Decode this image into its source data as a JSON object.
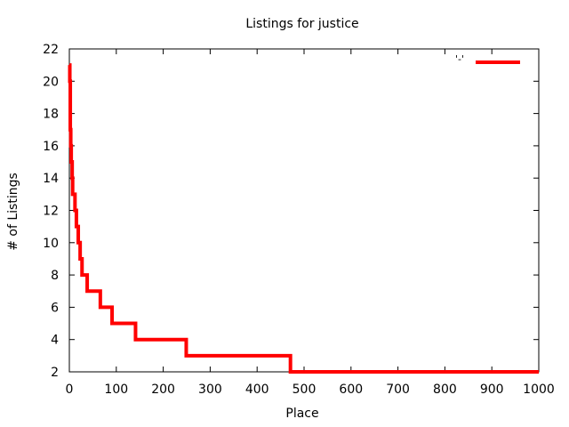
{
  "chart_data": {
    "type": "line",
    "title": "Listings for justice",
    "xlabel": "Place",
    "ylabel": "# of Listings",
    "xlim": [
      0,
      1000
    ],
    "ylim": [
      2,
      22
    ],
    "xticks": [
      0,
      100,
      200,
      300,
      400,
      500,
      600,
      700,
      800,
      900,
      1000
    ],
    "yticks": [
      2,
      4,
      6,
      8,
      10,
      12,
      14,
      16,
      18,
      20,
      22
    ],
    "grid": false,
    "legend_position": "top-right",
    "series": [
      {
        "name": "'-'",
        "color": "#ff0000",
        "step": true,
        "points": [
          [
            0,
            21
          ],
          [
            1,
            20
          ],
          [
            2,
            17
          ],
          [
            3,
            16
          ],
          [
            4,
            15
          ],
          [
            6,
            14
          ],
          [
            7,
            13
          ],
          [
            12,
            12
          ],
          [
            15,
            11
          ],
          [
            19,
            10
          ],
          [
            23,
            9
          ],
          [
            27,
            8
          ],
          [
            38,
            7
          ],
          [
            66,
            6
          ],
          [
            91,
            5
          ],
          [
            141,
            4
          ],
          [
            249,
            3
          ],
          [
            471,
            2
          ],
          [
            1000,
            2
          ]
        ]
      }
    ]
  }
}
